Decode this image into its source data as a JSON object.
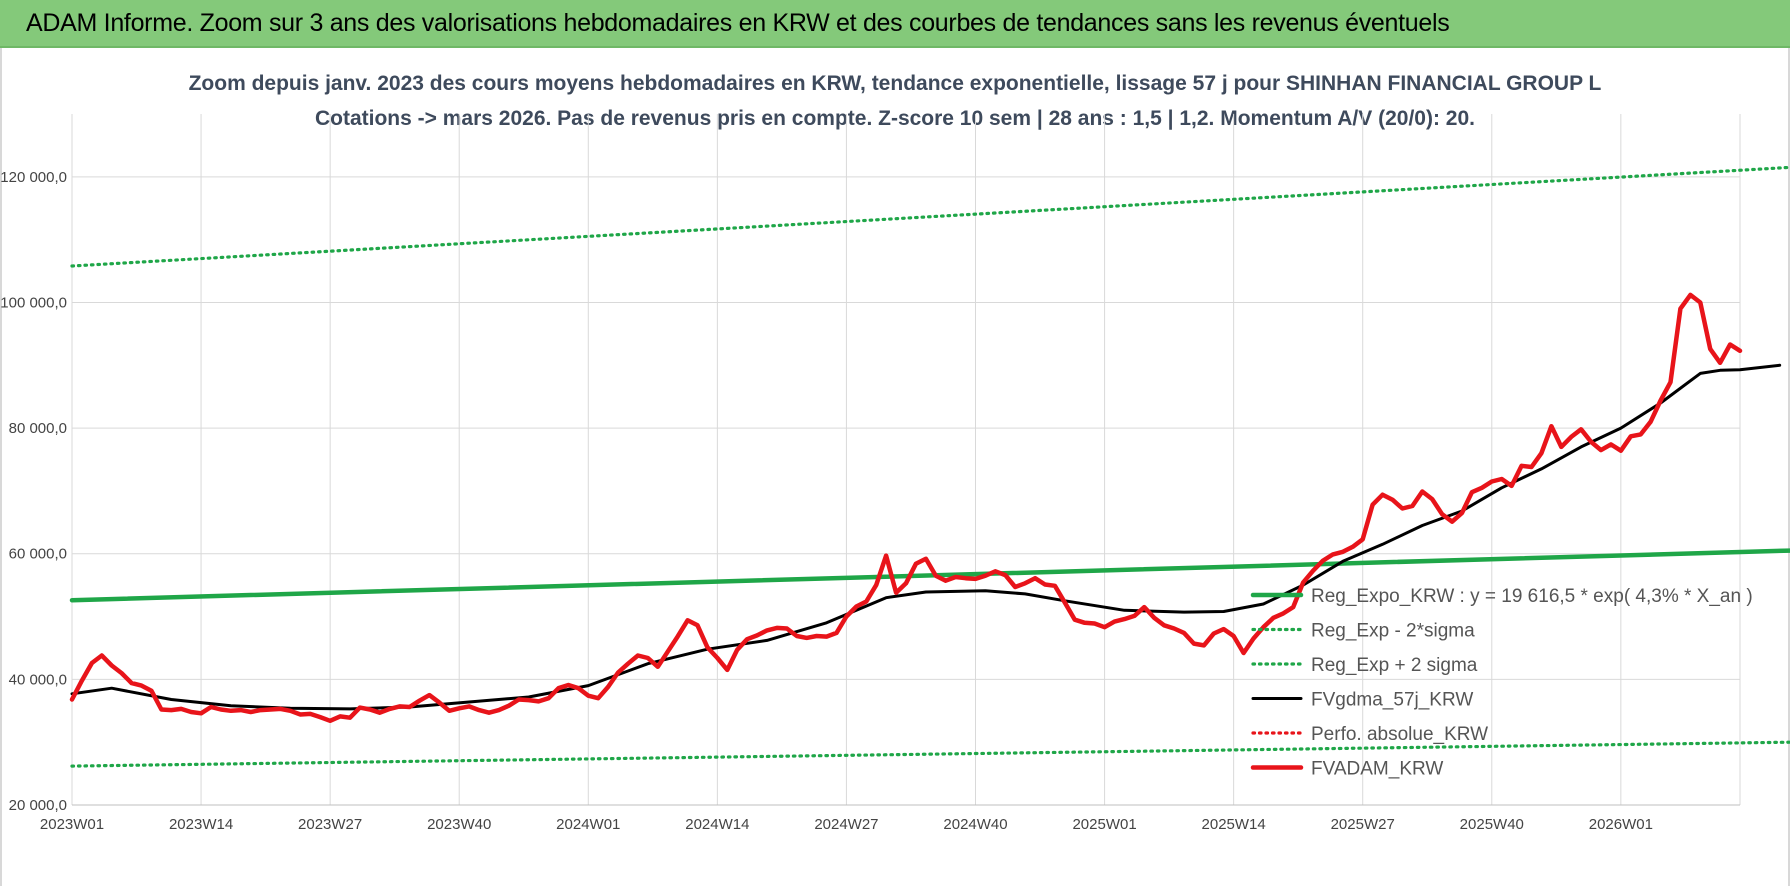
{
  "banner": {
    "title": "ADAM Informe. Zoom sur 3 ans des valorisations hebdomadaires en KRW et des courbes de tendances sans les revenus éventuels"
  },
  "chart_data": {
    "type": "line",
    "title": "Zoom depuis janv. 2023 des cours moyens hebdomadaires en KRW, tendance exponentielle, lissage 57 j pour SHINHAN FINANCIAL GROUP L",
    "subtitle": "Cotations -> mars 2026. Pas de revenus pris en compte. Z-score 10 sem | 28 ans : 1,5 | 1,2. Momentum A/V (20/0): 20.",
    "xlabel": "",
    "ylabel": "",
    "ylim": [
      20000,
      130000
    ],
    "y_ticks": [
      "20 000,0",
      "40 000,0",
      "60 000,0",
      "80 000,0",
      "100 000,0",
      "120 000,0"
    ],
    "y_tick_values": [
      20000,
      40000,
      60000,
      80000,
      100000,
      120000
    ],
    "x_ticks": [
      "2023W01",
      "2023W14",
      "2023W27",
      "2023W40",
      "2024W01",
      "2024W14",
      "2024W27",
      "2024W40",
      "2025W01",
      "2025W14",
      "2025W27",
      "2025W40",
      "2026W01"
    ],
    "x_tick_weeks": [
      0,
      13,
      26,
      39,
      52,
      65,
      78,
      91,
      104,
      117,
      130,
      143,
      156
    ],
    "grid": true,
    "legend_position": "bottom-right",
    "series": [
      {
        "name": "Reg_Expo_KRW : y = 19 616,5 * exp( 4,3% *  X_an )",
        "color": "#1fa648",
        "style": "solid-thick",
        "points": [
          [
            0,
            52600
          ],
          [
            173,
            60500
          ]
        ]
      },
      {
        "name": "Reg_Exp - 2*sigma",
        "color": "#1fa648",
        "style": "dotted",
        "points": [
          [
            0,
            26200
          ],
          [
            173,
            30000
          ]
        ]
      },
      {
        "name": "Reg_Exp + 2 sigma",
        "color": "#1fa648",
        "style": "dotted",
        "points": [
          [
            0,
            105800
          ],
          [
            173,
            121500
          ]
        ]
      },
      {
        "name": "FVgdma_57j_KRW",
        "color": "#000000",
        "style": "solid",
        "points": [
          [
            0,
            37700
          ],
          [
            4,
            38600
          ],
          [
            10,
            36800
          ],
          [
            16,
            35800
          ],
          [
            22,
            35400
          ],
          [
            28,
            35300
          ],
          [
            34,
            35600
          ],
          [
            40,
            36400
          ],
          [
            46,
            37200
          ],
          [
            52,
            39000
          ],
          [
            58,
            42500
          ],
          [
            64,
            44800
          ],
          [
            70,
            46200
          ],
          [
            76,
            49000
          ],
          [
            82,
            53000
          ],
          [
            86,
            53900
          ],
          [
            92,
            54100
          ],
          [
            96,
            53600
          ],
          [
            100,
            52500
          ],
          [
            106,
            51000
          ],
          [
            112,
            50700
          ],
          [
            116,
            50800
          ],
          [
            120,
            52000
          ],
          [
            124,
            55000
          ],
          [
            128,
            58800
          ],
          [
            132,
            61500
          ],
          [
            136,
            64500
          ],
          [
            140,
            66800
          ],
          [
            144,
            70500
          ],
          [
            148,
            73500
          ],
          [
            152,
            77000
          ],
          [
            156,
            80000
          ],
          [
            160,
            84000
          ],
          [
            164,
            88700
          ],
          [
            166,
            89200
          ],
          [
            168,
            89300
          ],
          [
            172,
            90000
          ]
        ]
      },
      {
        "name": "Perfo. absolue_KRW",
        "color": "#e8141a",
        "style": "dotted",
        "points": []
      },
      {
        "name": "FVADAM_KRW",
        "color": "#e8141a",
        "style": "solid-thick",
        "points": [
          [
            0,
            36800
          ],
          [
            1,
            39800
          ],
          [
            2,
            42600
          ],
          [
            3,
            43800
          ],
          [
            4,
            42200
          ],
          [
            5,
            41000
          ],
          [
            6,
            39400
          ],
          [
            7,
            39000
          ],
          [
            8,
            38200
          ],
          [
            9,
            35200
          ],
          [
            10,
            35100
          ],
          [
            11,
            35300
          ],
          [
            12,
            34800
          ],
          [
            13,
            34600
          ],
          [
            14,
            35600
          ],
          [
            15,
            35200
          ],
          [
            16,
            35000
          ],
          [
            17,
            35100
          ],
          [
            18,
            34800
          ],
          [
            19,
            35100
          ],
          [
            20,
            35200
          ],
          [
            21,
            35300
          ],
          [
            22,
            35000
          ],
          [
            23,
            34400
          ],
          [
            24,
            34500
          ],
          [
            25,
            34000
          ],
          [
            26,
            33400
          ],
          [
            27,
            34100
          ],
          [
            28,
            33900
          ],
          [
            29,
            35500
          ],
          [
            30,
            35200
          ],
          [
            31,
            34700
          ],
          [
            32,
            35300
          ],
          [
            33,
            35700
          ],
          [
            34,
            35600
          ],
          [
            35,
            36600
          ],
          [
            36,
            37500
          ],
          [
            37,
            36300
          ],
          [
            38,
            35000
          ],
          [
            39,
            35400
          ],
          [
            40,
            35700
          ],
          [
            41,
            35100
          ],
          [
            42,
            34700
          ],
          [
            43,
            35100
          ],
          [
            44,
            35800
          ],
          [
            45,
            36800
          ],
          [
            46,
            36700
          ],
          [
            47,
            36500
          ],
          [
            48,
            37000
          ],
          [
            49,
            38600
          ],
          [
            50,
            39100
          ],
          [
            51,
            38600
          ],
          [
            52,
            37400
          ],
          [
            53,
            37000
          ],
          [
            54,
            38800
          ],
          [
            55,
            41100
          ],
          [
            56,
            42500
          ],
          [
            57,
            43800
          ],
          [
            58,
            43400
          ],
          [
            59,
            42000
          ],
          [
            60,
            44400
          ],
          [
            61,
            46800
          ],
          [
            62,
            49400
          ],
          [
            63,
            48600
          ],
          [
            64,
            45100
          ],
          [
            65,
            43400
          ],
          [
            66,
            41500
          ],
          [
            67,
            44700
          ],
          [
            68,
            46400
          ],
          [
            69,
            47000
          ],
          [
            70,
            47800
          ],
          [
            71,
            48200
          ],
          [
            72,
            48100
          ],
          [
            73,
            46900
          ],
          [
            74,
            46600
          ],
          [
            75,
            46900
          ],
          [
            76,
            46800
          ],
          [
            77,
            47400
          ],
          [
            78,
            50000
          ],
          [
            79,
            51600
          ],
          [
            80,
            52400
          ],
          [
            81,
            55000
          ],
          [
            82,
            59700
          ],
          [
            83,
            53800
          ],
          [
            84,
            55300
          ],
          [
            85,
            58400
          ],
          [
            86,
            59200
          ],
          [
            87,
            56500
          ],
          [
            88,
            55700
          ],
          [
            89,
            56300
          ],
          [
            90,
            56100
          ],
          [
            91,
            56000
          ],
          [
            92,
            56500
          ],
          [
            93,
            57200
          ],
          [
            94,
            56600
          ],
          [
            95,
            54700
          ],
          [
            96,
            55300
          ],
          [
            97,
            56100
          ],
          [
            98,
            55100
          ],
          [
            99,
            54900
          ],
          [
            100,
            52200
          ],
          [
            101,
            49500
          ],
          [
            102,
            49000
          ],
          [
            103,
            48900
          ],
          [
            104,
            48300
          ],
          [
            105,
            49200
          ],
          [
            106,
            49600
          ],
          [
            107,
            50100
          ],
          [
            108,
            51500
          ],
          [
            109,
            49800
          ],
          [
            110,
            48600
          ],
          [
            111,
            48100
          ],
          [
            112,
            47400
          ],
          [
            113,
            45700
          ],
          [
            114,
            45400
          ],
          [
            115,
            47300
          ],
          [
            116,
            48000
          ],
          [
            117,
            46900
          ],
          [
            118,
            44200
          ],
          [
            119,
            46500
          ],
          [
            120,
            48300
          ],
          [
            121,
            49800
          ],
          [
            122,
            50500
          ],
          [
            123,
            51500
          ],
          [
            124,
            55400
          ],
          [
            125,
            57300
          ],
          [
            126,
            58900
          ],
          [
            127,
            59900
          ],
          [
            128,
            60300
          ],
          [
            129,
            61100
          ],
          [
            130,
            62300
          ],
          [
            131,
            67800
          ],
          [
            132,
            69400
          ],
          [
            133,
            68600
          ],
          [
            134,
            67200
          ],
          [
            135,
            67600
          ],
          [
            136,
            69900
          ],
          [
            137,
            68700
          ],
          [
            138,
            66300
          ],
          [
            139,
            65100
          ],
          [
            140,
            66500
          ],
          [
            141,
            69800
          ],
          [
            142,
            70500
          ],
          [
            143,
            71500
          ],
          [
            144,
            71900
          ],
          [
            145,
            70800
          ],
          [
            146,
            74000
          ],
          [
            147,
            73800
          ],
          [
            148,
            76000
          ],
          [
            149,
            80300
          ],
          [
            150,
            77000
          ],
          [
            151,
            78600
          ],
          [
            152,
            79800
          ],
          [
            153,
            77800
          ],
          [
            154,
            76500
          ],
          [
            155,
            77400
          ],
          [
            156,
            76400
          ],
          [
            157,
            78700
          ],
          [
            158,
            79000
          ],
          [
            159,
            81000
          ],
          [
            160,
            84400
          ],
          [
            161,
            87300
          ],
          [
            162,
            99000
          ],
          [
            163,
            101200
          ],
          [
            164,
            100000
          ],
          [
            165,
            92600
          ],
          [
            166,
            90400
          ],
          [
            167,
            93300
          ],
          [
            168,
            92300
          ]
        ]
      }
    ]
  }
}
